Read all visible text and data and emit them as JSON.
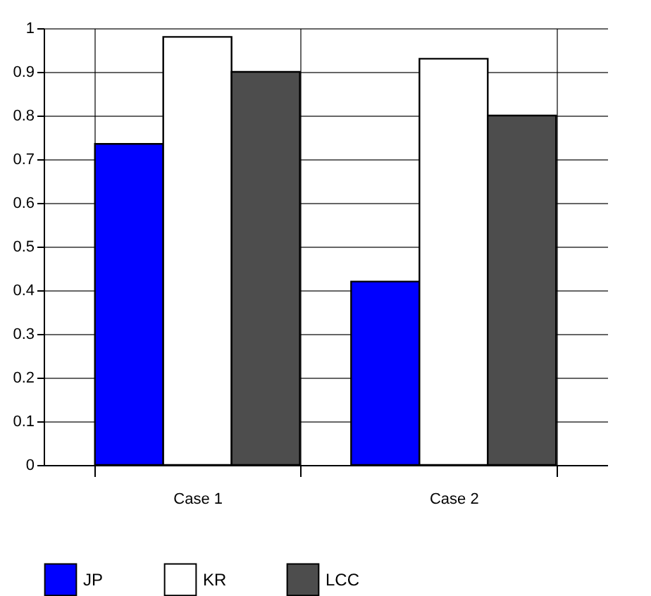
{
  "chart_data": {
    "type": "bar",
    "categories": [
      "Case 1",
      "Case 2"
    ],
    "series": [
      {
        "name": "JP",
        "color": "#0000ff",
        "values": [
          0.735,
          0.42
        ]
      },
      {
        "name": "KR",
        "color": "#ffffff",
        "values": [
          0.98,
          0.93
        ]
      },
      {
        "name": "LCC",
        "color": "#4d4d4d",
        "values": [
          0.9,
          0.8
        ]
      }
    ],
    "ylim": [
      0,
      1
    ],
    "yticks": [
      0,
      0.1,
      0.2,
      0.3,
      0.4,
      0.5,
      0.6,
      0.7,
      0.8,
      0.9,
      1
    ],
    "grid": true,
    "legend": "bottom"
  }
}
